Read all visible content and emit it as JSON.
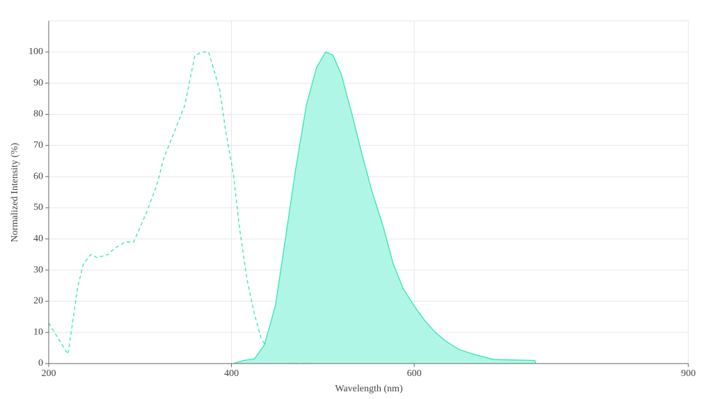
{
  "chart_data": {
    "type": "line",
    "x_label": "Wavelength (nm)",
    "y_label": "Normalized Intensity (%)",
    "xlim": [
      200,
      900
    ],
    "xticks": [
      200,
      400,
      600,
      900
    ],
    "ylim": [
      0,
      110
    ],
    "yticks": [
      0,
      10,
      20,
      30,
      40,
      50,
      60,
      70,
      80,
      90,
      100
    ],
    "grid": true,
    "series": [
      {
        "color": "#2ee8b4",
        "dashed": true,
        "filled": false,
        "x": [
          200,
          221,
          232,
          238,
          246,
          253,
          265,
          272,
          284,
          293,
          307,
          318,
          326,
          337,
          349,
          360,
          369,
          375,
          387,
          394,
          402,
          409,
          417,
          425,
          432,
          444,
          459,
          486
        ],
        "values": [
          13,
          3,
          25,
          32,
          35,
          34,
          35,
          37,
          39,
          39,
          48.5,
          57,
          66,
          74,
          83,
          99,
          100,
          100,
          88,
          74,
          61,
          43,
          27,
          16,
          8.5,
          2,
          0,
          0
        ]
      },
      {
        "color": "#2ee8b4",
        "dashed": false,
        "filled": true,
        "fill": "#b0f6e6",
        "x": [
          402,
          413,
          425,
          436,
          448,
          459,
          470,
          482,
          493,
          503,
          511,
          520,
          531,
          543,
          554,
          566,
          577,
          588,
          600,
          611,
          623,
          634,
          649,
          665,
          687,
          732,
          733
        ],
        "values": [
          0,
          1,
          1.5,
          6,
          18.5,
          40,
          62,
          83,
          95,
          100,
          99,
          93,
          81,
          67,
          55,
          44,
          32,
          24,
          18.5,
          14,
          10,
          7.3,
          4.5,
          3,
          1.3,
          1,
          0
        ]
      }
    ]
  }
}
